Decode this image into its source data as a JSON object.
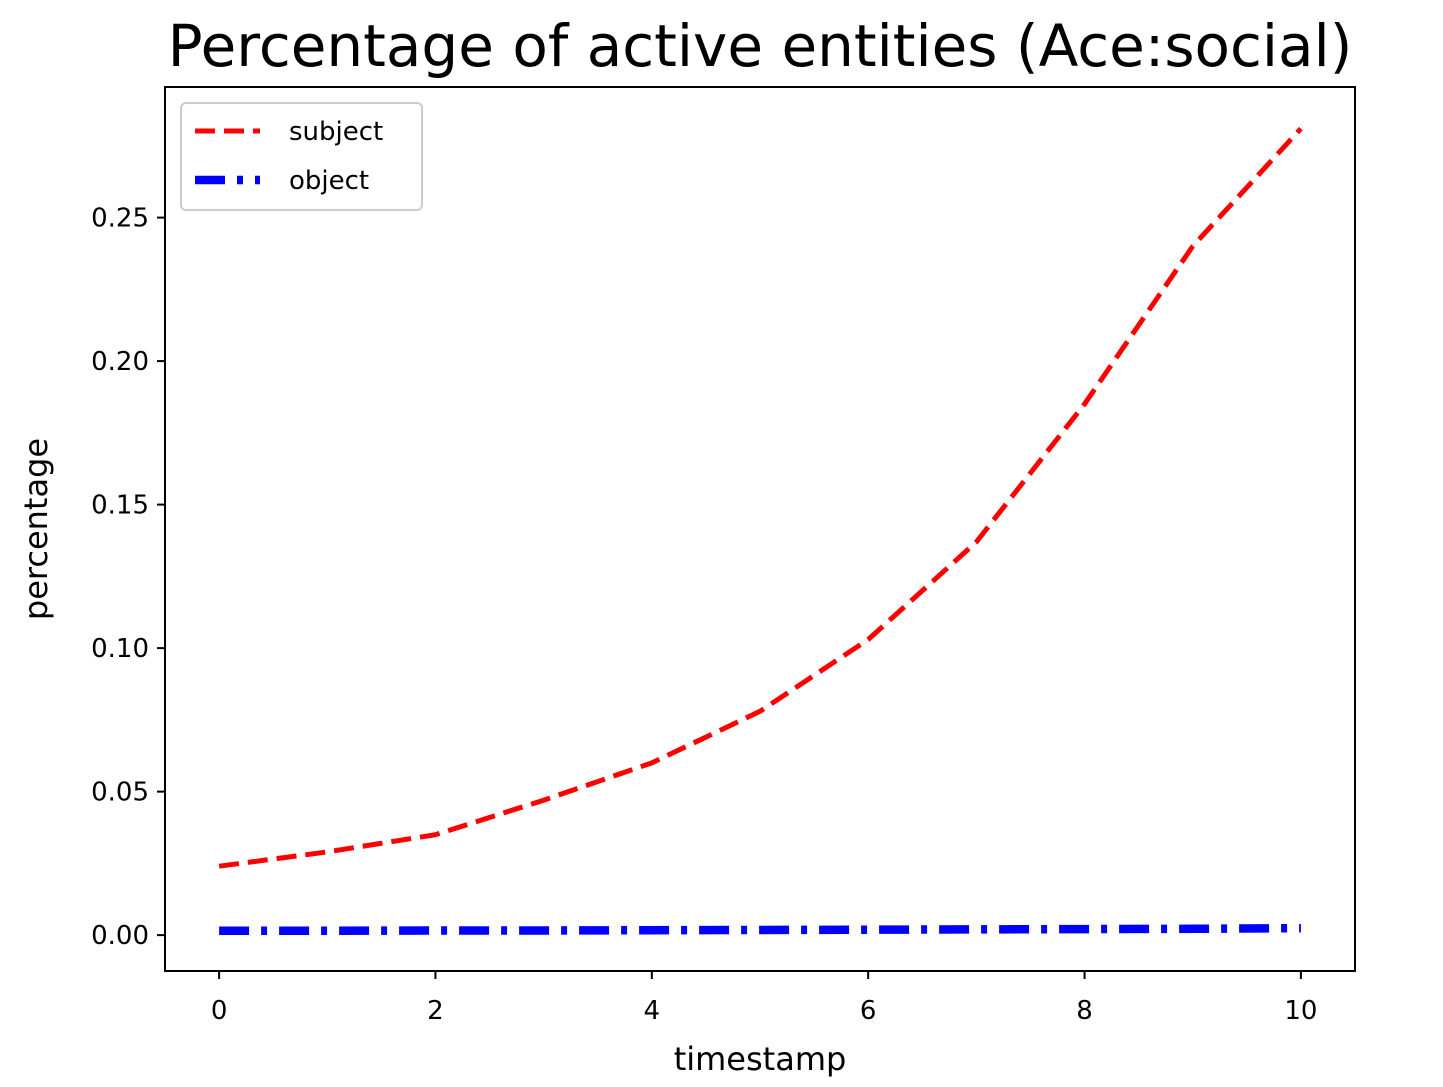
{
  "chart_data": {
    "type": "line",
    "title": "Percentage of active entities (Ace:social)",
    "xlabel": "timestamp",
    "ylabel": "percentage",
    "xlim": [
      -0.5,
      10.5
    ],
    "ylim": [
      -0.0125,
      0.2955
    ],
    "x_ticks": [
      0,
      2,
      4,
      6,
      8,
      10
    ],
    "y_ticks": [
      0.0,
      0.05,
      0.1,
      0.15,
      0.2,
      0.25
    ],
    "x_tick_labels": [
      "0",
      "2",
      "4",
      "6",
      "8",
      "10"
    ],
    "y_tick_labels": [
      "0.00",
      "0.05",
      "0.10",
      "0.15",
      "0.20",
      "0.25"
    ],
    "grid": false,
    "legend_position": "upper-left",
    "x": [
      0,
      1,
      2,
      3,
      4,
      5,
      6,
      7,
      8,
      9,
      10
    ],
    "series": [
      {
        "name": "subject",
        "color": "#ff0000",
        "line_style": "dashed",
        "values": [
          0.024,
          0.029,
          0.035,
          0.047,
          0.06,
          0.078,
          0.103,
          0.137,
          0.185,
          0.24,
          0.281
        ]
      },
      {
        "name": "object",
        "color": "#0000ff",
        "line_style": "dash-dot",
        "values": [
          0.0015,
          0.0015,
          0.0016,
          0.0016,
          0.0017,
          0.0018,
          0.0019,
          0.002,
          0.0021,
          0.0022,
          0.0024
        ]
      }
    ]
  }
}
